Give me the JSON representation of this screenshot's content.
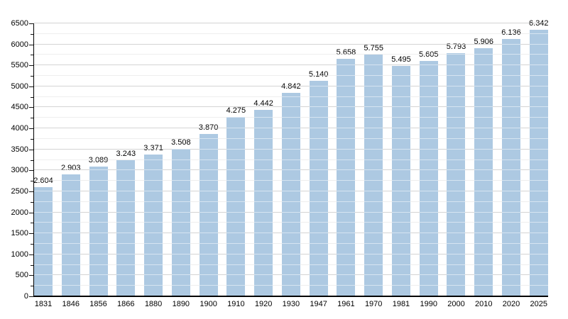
{
  "chart_data": {
    "type": "bar",
    "title": "",
    "xlabel": "",
    "ylabel": "",
    "categories": [
      "1831",
      "1846",
      "1856",
      "1866",
      "1880",
      "1890",
      "1900",
      "1910",
      "1920",
      "1930",
      "1947",
      "1961",
      "1970",
      "1981",
      "1990",
      "2000",
      "2010",
      "2020",
      "2025"
    ],
    "values": [
      2604,
      2903,
      3089,
      3243,
      3371,
      3508,
      3870,
      4275,
      4442,
      4842,
      5140,
      5658,
      5755,
      5495,
      5605,
      5793,
      5906,
      6136,
      6342
    ],
    "value_labels": [
      "2.604",
      "2.903",
      "3.089",
      "3.243",
      "3.371",
      "3.508",
      "3.870",
      "4.275",
      "4.442",
      "4.842",
      "5.140",
      "5.658",
      "5.755",
      "5.495",
      "5.605",
      "5.793",
      "5.906",
      "6.136",
      "6.342"
    ],
    "ylim": [
      0,
      6500
    ],
    "y_major_step": 500,
    "y_minor_step": 250,
    "y_tick_labels": [
      "0",
      "500",
      "1000",
      "1500",
      "2000",
      "2500",
      "3000",
      "3500",
      "4000",
      "4500",
      "5000",
      "5500",
      "6000",
      "6500"
    ],
    "grid": true,
    "legend": false,
    "colors": {
      "bar": "#adc9e2",
      "major_gridline": "#a9a9a9",
      "minor_gridline": "#dcdcdc",
      "axis": "#000000",
      "text": "#000000",
      "background": "#ffffff"
    }
  }
}
